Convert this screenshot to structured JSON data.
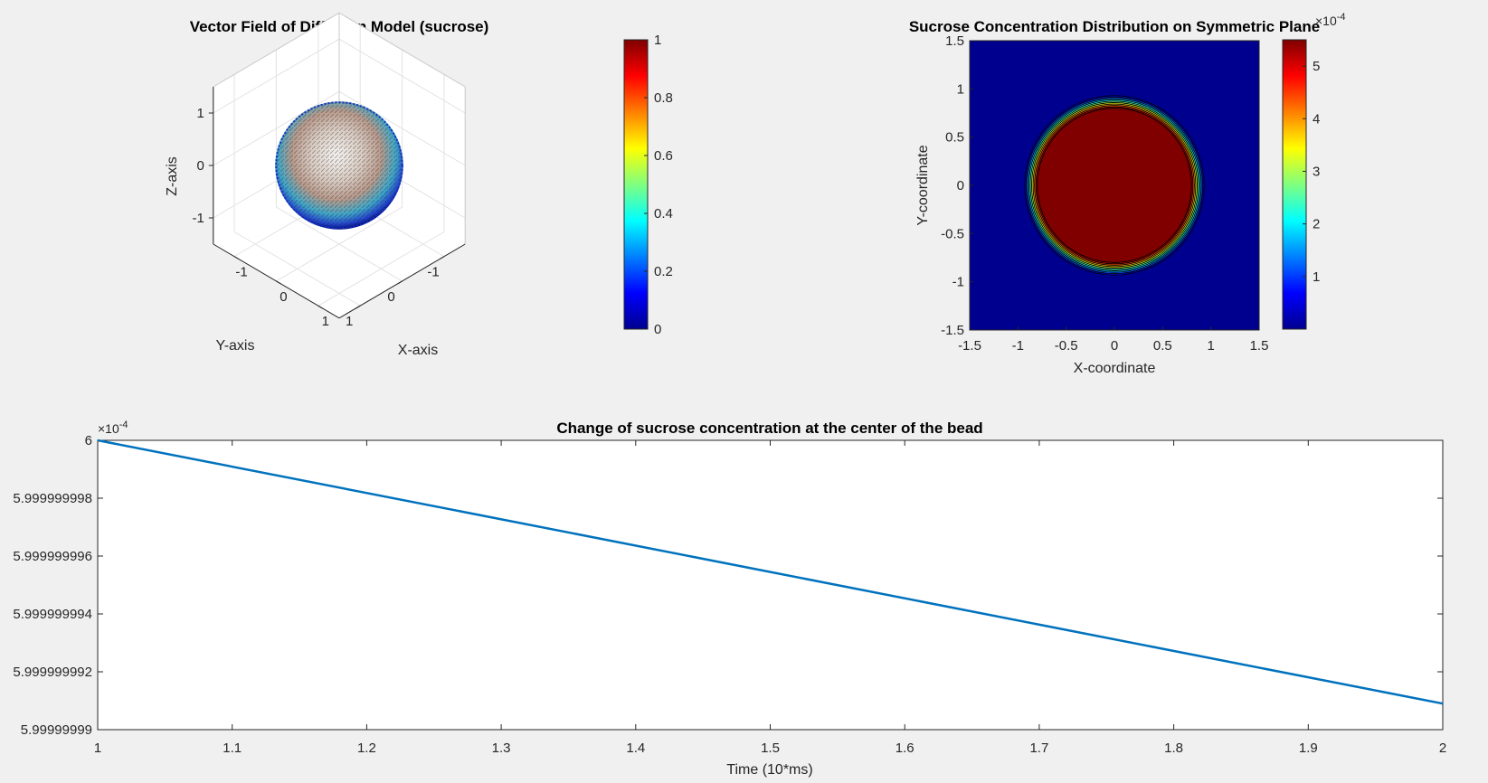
{
  "figure": {
    "background": "#f0f0f0",
    "colormap": "jet"
  },
  "chart_data": [
    {
      "id": "vector-field",
      "type": "scatter",
      "subtype": "3d-quiver",
      "title": "Vector Field of Diffusion Model (sucrose)",
      "xlabel": "X-axis",
      "ylabel": "Y-axis",
      "zlabel": "Z-axis",
      "xticks": [
        "-1",
        "0",
        "1"
      ],
      "yticks": [
        "-1",
        "0",
        "1"
      ],
      "zticks": [
        "-1",
        "0",
        "1"
      ],
      "sphere_radius": 1,
      "grid": true,
      "colorbar": {
        "min": 0,
        "max": 1,
        "ticks": [
          "0",
          "0.2",
          "0.4",
          "0.6",
          "0.8",
          "1"
        ]
      }
    },
    {
      "id": "concentration-plane",
      "type": "heatmap",
      "subtype": "filled-contour",
      "title": "Sucrose Concentration Distribution on Symmetric Plane",
      "xlabel": "X-coordinate",
      "ylabel": "Y-coordinate",
      "xlim": [
        -1.5,
        1.5
      ],
      "ylim": [
        -1.5,
        1.5
      ],
      "xticks": [
        "-1.5",
        "-1",
        "-0.5",
        "0",
        "0.5",
        "1",
        "1.5"
      ],
      "yticks": [
        "-1.5",
        "-1",
        "-0.5",
        "0",
        "0.5",
        "1",
        "1.5"
      ],
      "core_radius": 0.8,
      "outer_radius": 0.93,
      "colorbar": {
        "min": 0,
        "max": 5.5,
        "ticks": [
          "1",
          "2",
          "3",
          "4",
          "5"
        ],
        "exponent": "-4"
      }
    },
    {
      "id": "center-concentration",
      "type": "line",
      "title": "Change of sucrose concentration at the center of the bead",
      "xlabel": "Time (10*ms)",
      "ylabel": "",
      "xlim": [
        1,
        2
      ],
      "ylim": [
        5.99999999,
        6.0
      ],
      "xticks": [
        "1",
        "1.1",
        "1.2",
        "1.3",
        "1.4",
        "1.5",
        "1.6",
        "1.7",
        "1.8",
        "1.9",
        "2"
      ],
      "yticks": [
        "5.99999999",
        "5.999999992",
        "5.999999994",
        "5.999999996",
        "5.999999998",
        "6"
      ],
      "yexponent": "-4",
      "color": "#0072bd",
      "series": [
        {
          "x": [
            1,
            2
          ],
          "y": [
            6.0,
            5.9999999909
          ]
        }
      ]
    }
  ]
}
